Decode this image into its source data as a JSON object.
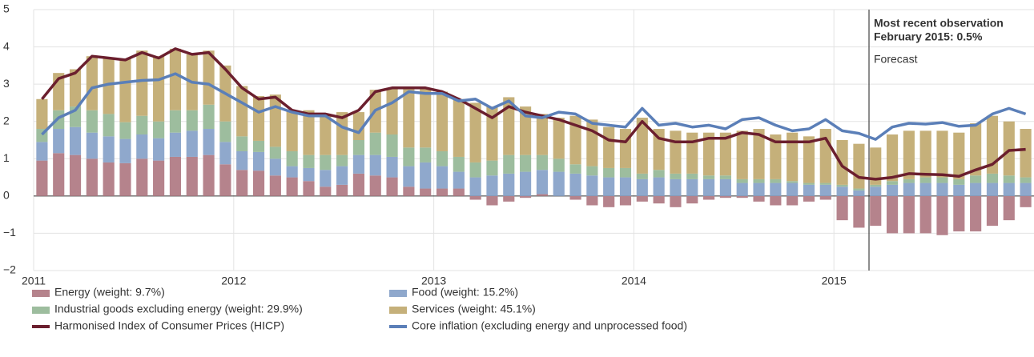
{
  "chart_data": {
    "type": "bar",
    "categories": [
      "2011",
      null,
      null,
      null,
      null,
      null,
      null,
      null,
      null,
      null,
      null,
      null,
      "2012",
      null,
      null,
      null,
      null,
      null,
      null,
      null,
      null,
      null,
      null,
      null,
      "2013",
      null,
      null,
      null,
      null,
      null,
      null,
      null,
      null,
      null,
      null,
      null,
      "2014",
      null,
      null,
      null,
      null,
      null,
      null,
      null,
      null,
      null,
      null,
      null,
      "2015",
      null,
      null,
      null,
      null,
      null,
      null,
      null,
      null,
      null,
      null,
      null
    ],
    "ylim": [
      -2,
      5
    ],
    "yticks": [
      {
        "value": -2,
        "label": "−2"
      },
      {
        "value": -1,
        "label": "−1"
      },
      0,
      1,
      2,
      3,
      4,
      5
    ],
    "stacked": true,
    "series": [
      {
        "name": "Energy (weight: 9.7%)",
        "type": "bar",
        "color": "#b5838c",
        "values": [
          0.95,
          1.15,
          1.1,
          1.0,
          0.9,
          0.88,
          1.0,
          0.95,
          1.05,
          1.05,
          1.1,
          0.85,
          0.7,
          0.68,
          0.55,
          0.5,
          0.4,
          0.25,
          0.3,
          0.6,
          0.55,
          0.5,
          0.25,
          0.2,
          0.2,
          0.2,
          -0.1,
          -0.25,
          -0.15,
          -0.05,
          0.05,
          0,
          -0.1,
          -0.25,
          -0.3,
          -0.25,
          -0.15,
          -0.2,
          -0.3,
          -0.2,
          -0.1,
          -0.05,
          -0.05,
          -0.15,
          -0.25,
          -0.25,
          -0.15,
          -0.1,
          -0.65,
          -0.85,
          -0.8,
          -1.0,
          -1.0,
          -1.0,
          -1.05,
          -0.95,
          -0.95,
          -0.8,
          -0.65,
          -0.3
        ]
      },
      {
        "name": "Food (weight: 15.2%)",
        "type": "bar",
        "color": "#8fa8cc",
        "values": [
          0.5,
          0.65,
          0.75,
          0.7,
          0.7,
          0.65,
          0.65,
          0.6,
          0.65,
          0.7,
          0.7,
          0.6,
          0.5,
          0.5,
          0.45,
          0.3,
          0.35,
          0.45,
          0.5,
          0.5,
          0.55,
          0.55,
          0.55,
          0.7,
          0.6,
          0.45,
          0.5,
          0.55,
          0.6,
          0.65,
          0.65,
          0.65,
          0.6,
          0.55,
          0.5,
          0.5,
          0.45,
          0.5,
          0.45,
          0.45,
          0.45,
          0.45,
          0.35,
          0.35,
          0.35,
          0.35,
          0.3,
          0.3,
          0.25,
          0.15,
          0.25,
          0.3,
          0.35,
          0.35,
          0.35,
          0.3,
          0.35,
          0.35,
          0.35,
          0.35
        ]
      },
      {
        "name": "Industrial goods excluding energy (weight: 29.9%)",
        "type": "bar",
        "color": "#9dbd9e",
        "values": [
          0.35,
          0.5,
          0.55,
          0.6,
          0.6,
          0.45,
          0.5,
          0.45,
          0.6,
          0.55,
          0.65,
          0.55,
          0.4,
          0.3,
          0.32,
          0.4,
          0.35,
          0.4,
          0.3,
          0.4,
          0.6,
          0.6,
          0.5,
          0.4,
          0.4,
          0.4,
          0.4,
          0.4,
          0.5,
          0.45,
          0.4,
          0.35,
          0.25,
          0.25,
          0.25,
          0.25,
          0.15,
          0.2,
          0.15,
          0.15,
          0.1,
          0.1,
          0.1,
          0.1,
          0.1,
          0.05,
          0.05,
          0.05,
          0.05,
          0.05,
          0.05,
          0.1,
          0.1,
          0.15,
          0.15,
          0.15,
          0.2,
          0.25,
          0.2,
          0.15
        ]
      },
      {
        "name": "Services (weight: 45.1%)",
        "type": "bar",
        "color": "#c5b07a",
        "values": [
          0.8,
          1.0,
          1.0,
          1.45,
          1.5,
          1.7,
          1.75,
          1.75,
          1.65,
          1.5,
          1.45,
          1.5,
          1.35,
          1.2,
          1.4,
          1.1,
          1.2,
          1.1,
          1.15,
          0.75,
          1.15,
          1.25,
          1.6,
          1.6,
          1.6,
          1.55,
          1.6,
          1.45,
          1.55,
          1.3,
          1.1,
          1.1,
          1.3,
          1.25,
          1.1,
          1.05,
          1.5,
          1.1,
          1.15,
          1.1,
          1.15,
          1.15,
          1.3,
          1.35,
          1.2,
          1.3,
          1.25,
          1.45,
          1.2,
          1.2,
          1.0,
          1.25,
          1.3,
          1.25,
          1.25,
          1.25,
          1.4,
          1.55,
          1.45,
          1.3
        ]
      },
      {
        "name": "Harmonised Index of Consumer Prices (HICP)",
        "type": "line",
        "color": "#6b1f2e",
        "values": [
          2.6,
          3.15,
          3.3,
          3.75,
          3.7,
          3.65,
          3.85,
          3.7,
          3.95,
          3.8,
          3.85,
          3.4,
          2.9,
          2.6,
          2.65,
          2.3,
          2.2,
          2.2,
          2.1,
          2.3,
          2.8,
          2.9,
          2.9,
          2.9,
          2.8,
          2.6,
          2.35,
          2.1,
          2.4,
          2.25,
          2.15,
          2.05,
          1.9,
          1.75,
          1.5,
          1.45,
          2.0,
          1.55,
          1.45,
          1.45,
          1.55,
          1.55,
          1.7,
          1.65,
          1.45,
          1.45,
          1.45,
          1.55,
          0.8,
          0.5,
          0.45,
          0.5,
          0.6,
          0.58,
          0.57,
          0.53,
          0.7,
          0.85,
          1.22,
          1.25
        ]
      },
      {
        "name": "Core inflation (excluding energy and unprocessed food)",
        "type": "line",
        "color": "#5b7fb8",
        "values": [
          1.65,
          2.1,
          2.3,
          2.9,
          3.0,
          3.05,
          3.1,
          3.12,
          3.28,
          3.05,
          3.0,
          2.75,
          2.5,
          2.25,
          2.4,
          2.25,
          2.15,
          2.15,
          1.85,
          1.7,
          2.3,
          2.5,
          2.8,
          2.75,
          2.75,
          2.55,
          2.6,
          2.35,
          2.55,
          2.15,
          2.1,
          2.25,
          2.2,
          1.95,
          1.9,
          1.85,
          2.35,
          1.9,
          1.95,
          1.85,
          1.9,
          1.8,
          2.05,
          2.1,
          1.9,
          1.75,
          1.8,
          2.05,
          1.75,
          1.68,
          1.52,
          1.85,
          1.95,
          1.93,
          1.97,
          1.87,
          1.9,
          2.2,
          2.35,
          2.2
        ]
      }
    ],
    "annotations": [
      "Most recent observation",
      "February 2015: 0.5%",
      "Forecast"
    ]
  }
}
